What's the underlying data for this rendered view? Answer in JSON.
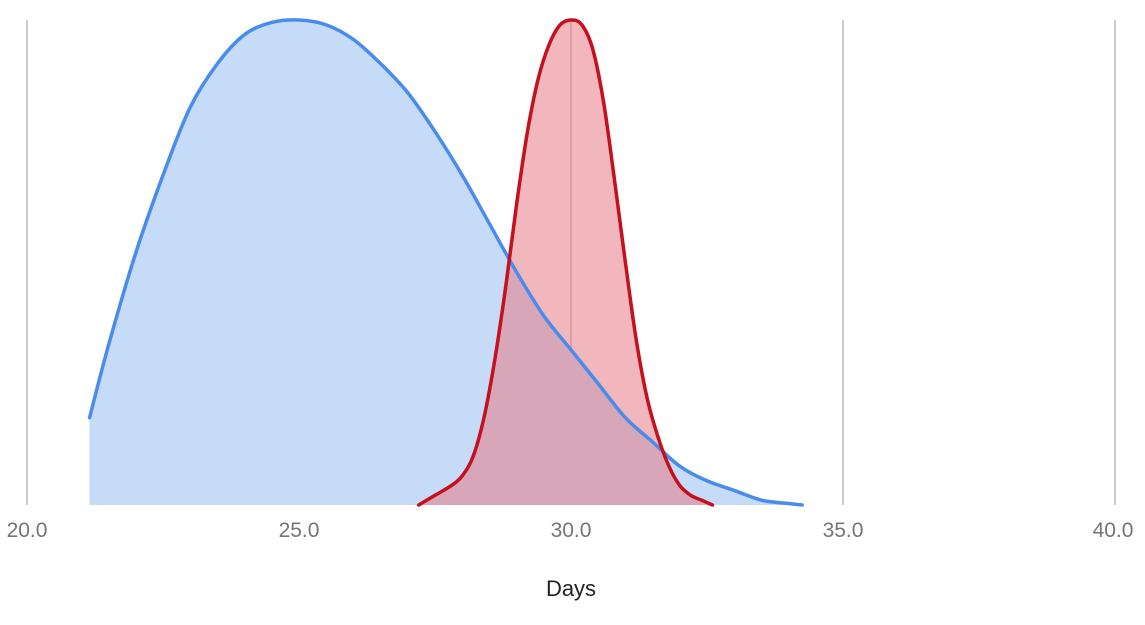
{
  "chart_data": {
    "type": "area",
    "title": "",
    "xlabel": "Days",
    "ylabel": "",
    "xlim": [
      20,
      40
    ],
    "ylim": [
      0,
      1
    ],
    "x_ticks": [
      "20.0",
      "25.0",
      "30.0",
      "35.0",
      "40.0"
    ],
    "grid": {
      "vertical": true,
      "horizontal": false
    },
    "legend": "none",
    "series": [
      {
        "color": "#4a8cec",
        "fill": "#c6dbf8",
        "x": [
          21.15,
          21.5,
          22.0,
          22.5,
          23.0,
          23.5,
          24.0,
          24.5,
          25.0,
          25.5,
          26.0,
          26.5,
          27.0,
          27.5,
          28.0,
          28.5,
          29.0,
          29.5,
          30.0,
          30.5,
          31.0,
          31.5,
          32.0,
          32.5,
          33.0,
          33.5,
          34.0,
          34.25
        ],
        "values": [
          0.18,
          0.33,
          0.52,
          0.68,
          0.82,
          0.91,
          0.97,
          0.995,
          1.0,
          0.99,
          0.96,
          0.91,
          0.85,
          0.77,
          0.68,
          0.58,
          0.48,
          0.39,
          0.32,
          0.25,
          0.18,
          0.13,
          0.08,
          0.05,
          0.03,
          0.01,
          0.003,
          0.0
        ]
      },
      {
        "color": "#c5101d",
        "fill": "#e57c85",
        "fill_opacity": 0.55,
        "x": [
          27.2,
          27.5,
          27.8,
          28.0,
          28.2,
          28.4,
          28.6,
          28.8,
          29.0,
          29.2,
          29.4,
          29.6,
          29.8,
          30.0,
          30.2,
          30.4,
          30.6,
          30.8,
          31.0,
          31.2,
          31.4,
          31.6,
          31.8,
          32.0,
          32.2,
          32.4,
          32.6
        ],
        "values": [
          0.0,
          0.02,
          0.04,
          0.06,
          0.1,
          0.18,
          0.3,
          0.45,
          0.62,
          0.77,
          0.88,
          0.95,
          0.99,
          1.0,
          0.99,
          0.94,
          0.83,
          0.67,
          0.5,
          0.34,
          0.22,
          0.14,
          0.08,
          0.04,
          0.02,
          0.01,
          0.0
        ]
      }
    ]
  }
}
